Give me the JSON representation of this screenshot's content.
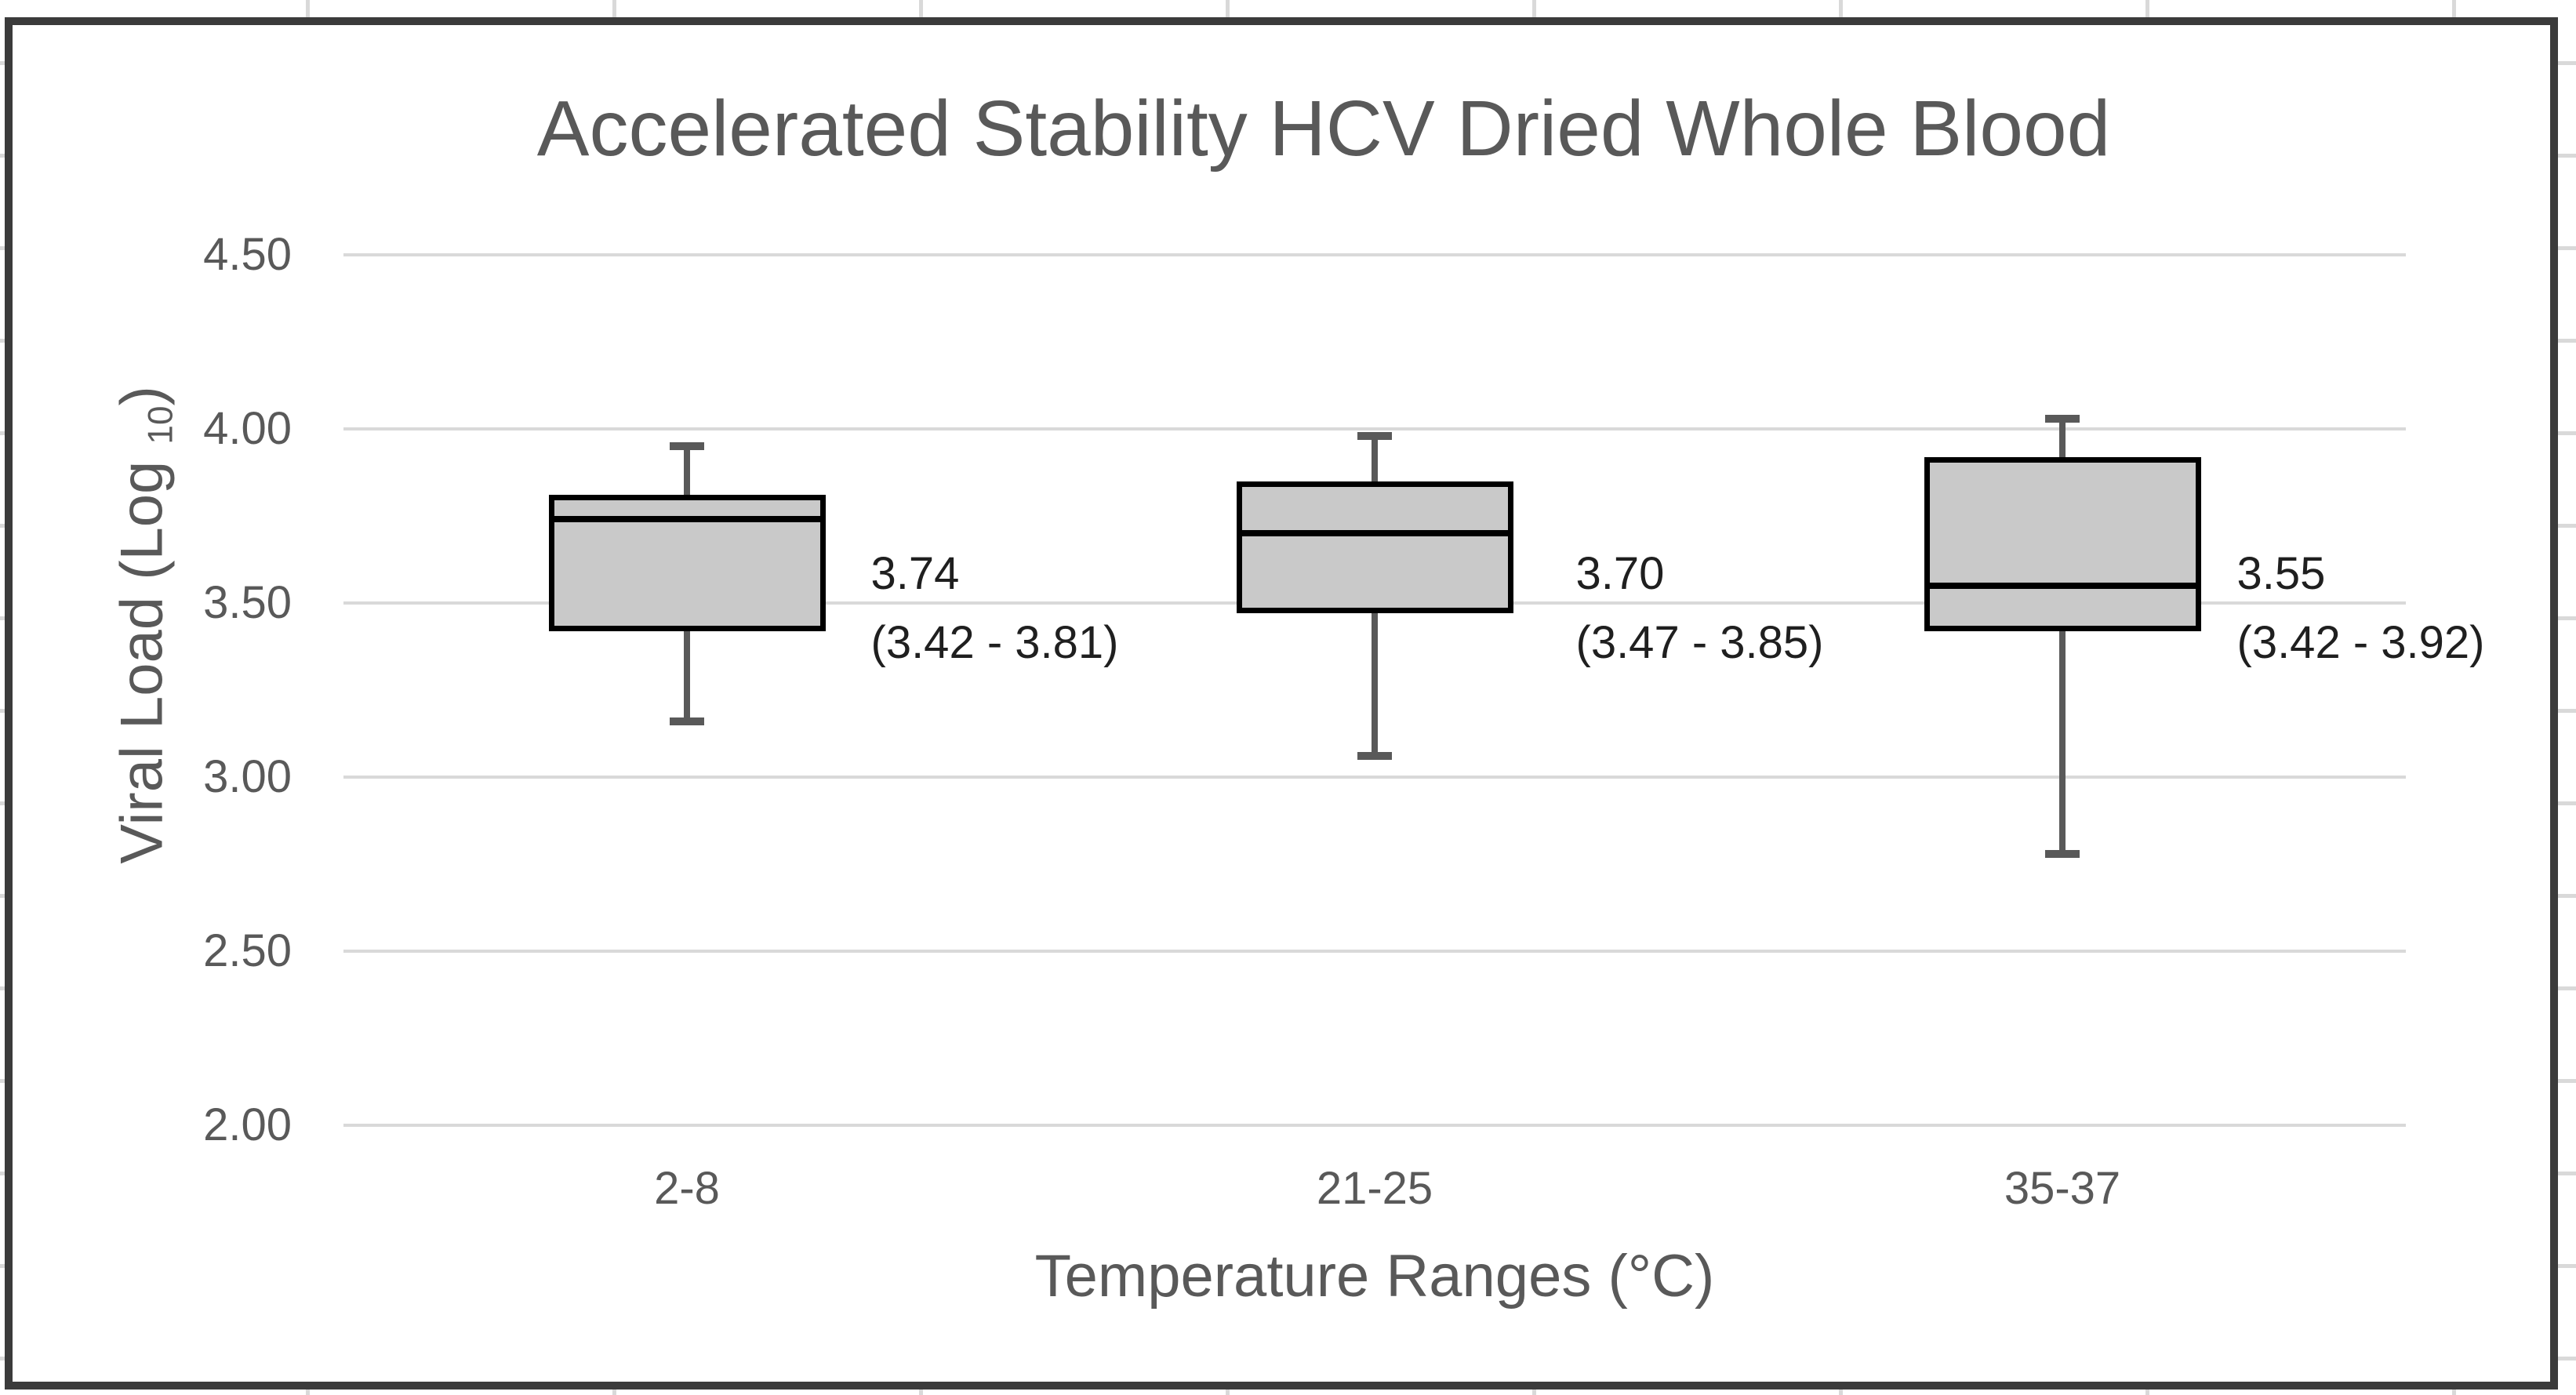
{
  "colors": {
    "background": "#ffffff",
    "frame_border": "#3b3b3b",
    "stub": "#d9d9d9",
    "gridline": "#d9d9d9",
    "gray_text": "#595959",
    "annotation_text": "#1f1f1f",
    "box_fill": "#c9c9c9",
    "box_border": "#000000",
    "whisker": "#595959"
  },
  "chart_data": {
    "type": "box",
    "title": "Accelerated Stability HCV Dried Whole Blood",
    "xlabel": "Temperature Ranges (°C)",
    "ylabel": "Viral Load (Log 10)",
    "ylabel_parts": {
      "main": "Viral Load (Log ",
      "subscript": "10",
      "close": ")"
    },
    "ylim": [
      2.0,
      4.5
    ],
    "grid": true,
    "legend": false,
    "yticks": [
      {
        "value": 4.5,
        "label": "4.50"
      },
      {
        "value": 4.0,
        "label": "4.00"
      },
      {
        "value": 3.5,
        "label": "3.50"
      },
      {
        "value": 3.0,
        "label": "3.00"
      },
      {
        "value": 2.5,
        "label": "2.50"
      },
      {
        "value": 2.0,
        "label": "2.00"
      }
    ],
    "categories": [
      "2-8",
      "21-25",
      "35-37"
    ],
    "series": [
      {
        "category": "2-8",
        "whisker_low": 3.16,
        "q1": 3.42,
        "median": 3.74,
        "q3": 3.81,
        "whisker_high": 3.95,
        "annotation_value": "3.74",
        "annotation_range": "(3.42 - 3.81)"
      },
      {
        "category": "21-25",
        "whisker_low": 3.06,
        "q1": 3.47,
        "median": 3.7,
        "q3": 3.85,
        "whisker_high": 3.98,
        "annotation_value": "3.70",
        "annotation_range": "(3.47 - 3.85)"
      },
      {
        "category": "35-37",
        "whisker_low": 2.78,
        "q1": 3.42,
        "median": 3.55,
        "q3": 3.92,
        "whisker_high": 4.03,
        "annotation_value": "3.55",
        "annotation_range": "(3.42 - 3.92)"
      }
    ]
  }
}
